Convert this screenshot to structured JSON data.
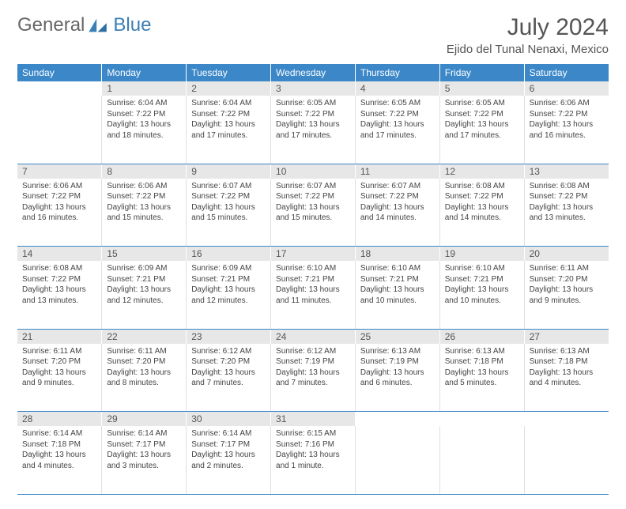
{
  "logo": {
    "general": "General",
    "blue": "Blue"
  },
  "title": "July 2024",
  "location": "Ejido del Tunal Nenaxi, Mexico",
  "headerRow": {
    "bg": "#3b87c8",
    "text": "#ffffff"
  },
  "dayNames": [
    "Sunday",
    "Monday",
    "Tuesday",
    "Wednesday",
    "Thursday",
    "Friday",
    "Saturday"
  ],
  "weeks": [
    {
      "nums": [
        "",
        "1",
        "2",
        "3",
        "4",
        "5",
        "6"
      ],
      "cells": [
        null,
        {
          "sr": "6:04 AM",
          "ss": "7:22 PM",
          "dl": "13 hours and 18 minutes."
        },
        {
          "sr": "6:04 AM",
          "ss": "7:22 PM",
          "dl": "13 hours and 17 minutes."
        },
        {
          "sr": "6:05 AM",
          "ss": "7:22 PM",
          "dl": "13 hours and 17 minutes."
        },
        {
          "sr": "6:05 AM",
          "ss": "7:22 PM",
          "dl": "13 hours and 17 minutes."
        },
        {
          "sr": "6:05 AM",
          "ss": "7:22 PM",
          "dl": "13 hours and 17 minutes."
        },
        {
          "sr": "6:06 AM",
          "ss": "7:22 PM",
          "dl": "13 hours and 16 minutes."
        }
      ]
    },
    {
      "nums": [
        "7",
        "8",
        "9",
        "10",
        "11",
        "12",
        "13"
      ],
      "cells": [
        {
          "sr": "6:06 AM",
          "ss": "7:22 PM",
          "dl": "13 hours and 16 minutes."
        },
        {
          "sr": "6:06 AM",
          "ss": "7:22 PM",
          "dl": "13 hours and 15 minutes."
        },
        {
          "sr": "6:07 AM",
          "ss": "7:22 PM",
          "dl": "13 hours and 15 minutes."
        },
        {
          "sr": "6:07 AM",
          "ss": "7:22 PM",
          "dl": "13 hours and 15 minutes."
        },
        {
          "sr": "6:07 AM",
          "ss": "7:22 PM",
          "dl": "13 hours and 14 minutes."
        },
        {
          "sr": "6:08 AM",
          "ss": "7:22 PM",
          "dl": "13 hours and 14 minutes."
        },
        {
          "sr": "6:08 AM",
          "ss": "7:22 PM",
          "dl": "13 hours and 13 minutes."
        }
      ]
    },
    {
      "nums": [
        "14",
        "15",
        "16",
        "17",
        "18",
        "19",
        "20"
      ],
      "cells": [
        {
          "sr": "6:08 AM",
          "ss": "7:22 PM",
          "dl": "13 hours and 13 minutes."
        },
        {
          "sr": "6:09 AM",
          "ss": "7:21 PM",
          "dl": "13 hours and 12 minutes."
        },
        {
          "sr": "6:09 AM",
          "ss": "7:21 PM",
          "dl": "13 hours and 12 minutes."
        },
        {
          "sr": "6:10 AM",
          "ss": "7:21 PM",
          "dl": "13 hours and 11 minutes."
        },
        {
          "sr": "6:10 AM",
          "ss": "7:21 PM",
          "dl": "13 hours and 10 minutes."
        },
        {
          "sr": "6:10 AM",
          "ss": "7:21 PM",
          "dl": "13 hours and 10 minutes."
        },
        {
          "sr": "6:11 AM",
          "ss": "7:20 PM",
          "dl": "13 hours and 9 minutes."
        }
      ]
    },
    {
      "nums": [
        "21",
        "22",
        "23",
        "24",
        "25",
        "26",
        "27"
      ],
      "cells": [
        {
          "sr": "6:11 AM",
          "ss": "7:20 PM",
          "dl": "13 hours and 9 minutes."
        },
        {
          "sr": "6:11 AM",
          "ss": "7:20 PM",
          "dl": "13 hours and 8 minutes."
        },
        {
          "sr": "6:12 AM",
          "ss": "7:20 PM",
          "dl": "13 hours and 7 minutes."
        },
        {
          "sr": "6:12 AM",
          "ss": "7:19 PM",
          "dl": "13 hours and 7 minutes."
        },
        {
          "sr": "6:13 AM",
          "ss": "7:19 PM",
          "dl": "13 hours and 6 minutes."
        },
        {
          "sr": "6:13 AM",
          "ss": "7:18 PM",
          "dl": "13 hours and 5 minutes."
        },
        {
          "sr": "6:13 AM",
          "ss": "7:18 PM",
          "dl": "13 hours and 4 minutes."
        }
      ]
    },
    {
      "nums": [
        "28",
        "29",
        "30",
        "31",
        "",
        "",
        ""
      ],
      "cells": [
        {
          "sr": "6:14 AM",
          "ss": "7:18 PM",
          "dl": "13 hours and 4 minutes."
        },
        {
          "sr": "6:14 AM",
          "ss": "7:17 PM",
          "dl": "13 hours and 3 minutes."
        },
        {
          "sr": "6:14 AM",
          "ss": "7:17 PM",
          "dl": "13 hours and 2 minutes."
        },
        {
          "sr": "6:15 AM",
          "ss": "7:16 PM",
          "dl": "13 hours and 1 minute."
        },
        null,
        null,
        null
      ]
    }
  ],
  "labels": {
    "sunrise": "Sunrise: ",
    "sunset": "Sunset: ",
    "daylight": "Daylight: "
  }
}
